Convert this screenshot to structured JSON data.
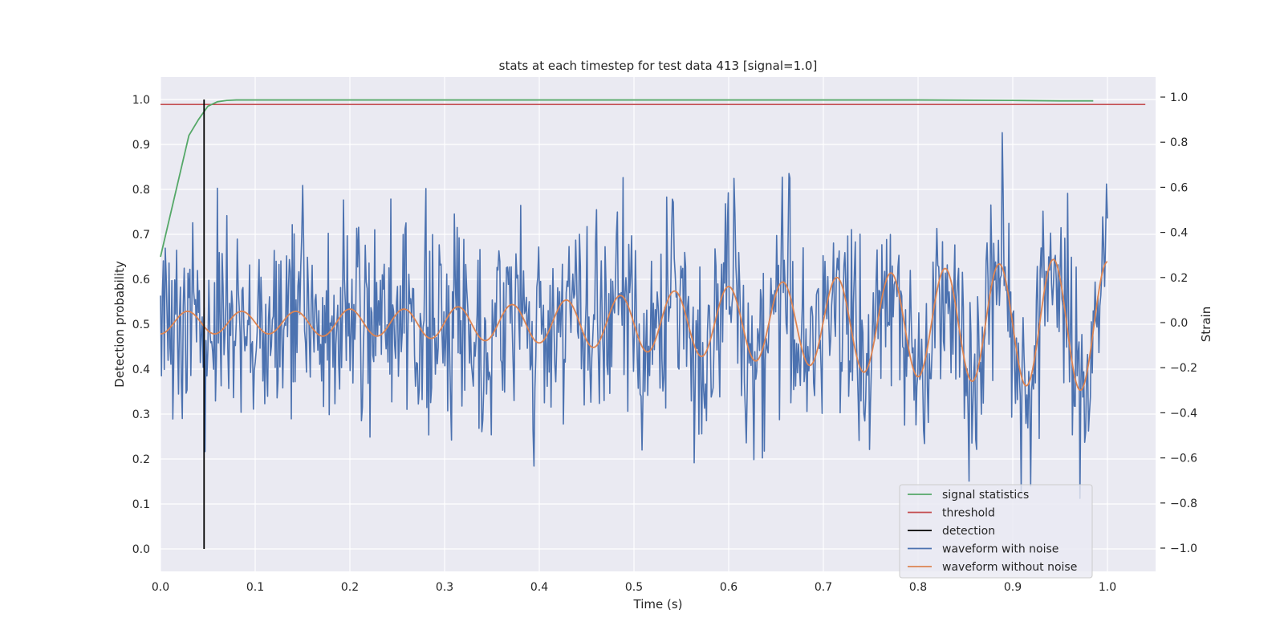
{
  "chart_data": {
    "type": "line",
    "title": "stats at each timestep for test data 413 [signal=1.0]",
    "xlabel": "Time (s)",
    "ylabel_left": "Detection probability",
    "ylabel_right": "Strain",
    "xlim": [
      0.0,
      1.05
    ],
    "ylim_left": [
      -0.05,
      1.05
    ],
    "ylim_right": [
      -1.1,
      1.1
    ],
    "grid": true,
    "x_ticks": [
      0.0,
      0.1,
      0.2,
      0.3,
      0.4,
      0.5,
      0.6,
      0.7,
      0.8,
      0.9,
      1.0
    ],
    "x_tick_labels": [
      "0.0",
      "0.1",
      "0.2",
      "0.3",
      "0.4",
      "0.5",
      "0.6",
      "0.7",
      "0.8",
      "0.9",
      "1.0"
    ],
    "y_left_ticks": [
      0.0,
      0.1,
      0.2,
      0.3,
      0.4,
      0.5,
      0.6,
      0.7,
      0.8,
      0.9,
      1.0
    ],
    "y_left_tick_labels": [
      "0.0",
      "0.1",
      "0.2",
      "0.3",
      "0.4",
      "0.5",
      "0.6",
      "0.7",
      "0.8",
      "0.9",
      "1.0"
    ],
    "y_right_ticks": [
      -1.0,
      -0.8,
      -0.6,
      -0.4,
      -0.2,
      0.0,
      0.2,
      0.4,
      0.6,
      0.8,
      1.0
    ],
    "y_right_tick_labels": [
      "−1.0",
      "−0.8",
      "−0.6",
      "−0.4",
      "−0.2",
      "0.0",
      "0.2",
      "0.4",
      "0.6",
      "0.8",
      "1.0"
    ],
    "legend_position": "bottom-right",
    "series": [
      {
        "name": "signal statistics",
        "axis": "left",
        "color": "#55a868",
        "x": [
          0.0,
          0.01,
          0.02,
          0.03,
          0.04,
          0.05,
          0.06,
          0.07,
          0.08,
          0.1,
          0.2,
          0.4,
          0.6,
          0.8,
          0.9,
          0.95,
          0.985
        ],
        "y": [
          0.65,
          0.74,
          0.83,
          0.92,
          0.955,
          0.985,
          0.995,
          0.998,
          0.999,
          0.999,
          0.999,
          0.999,
          0.999,
          0.999,
          0.998,
          0.997,
          0.997
        ]
      },
      {
        "name": "threshold",
        "axis": "left",
        "color": "#c44e52",
        "x": [
          0.0,
          1.04
        ],
        "y": [
          0.989,
          0.989
        ]
      },
      {
        "name": "detection",
        "axis": "left",
        "color": "#000000",
        "x": [
          0.046,
          0.046
        ],
        "y": [
          0.0,
          1.0
        ]
      },
      {
        "name": "waveform with noise",
        "axis": "right",
        "color": "#4c72b0",
        "x_range": [
          0.0,
          1.0
        ],
        "n_points": 1000,
        "y_approx_std": 0.3
      },
      {
        "name": "waveform without noise",
        "axis": "right",
        "color": "#dd8452",
        "x_range": [
          0.0,
          1.0
        ],
        "y": [
          -0.05,
          0.05,
          -0.05,
          0.05,
          -0.05,
          0.05,
          -0.06,
          0.06,
          -0.06,
          0.06,
          -0.07,
          0.07,
          -0.08,
          0.08,
          -0.09,
          0.1,
          -0.11,
          0.12,
          -0.13,
          0.14,
          -0.15,
          0.16,
          -0.17,
          0.18,
          -0.19,
          0.2,
          -0.22,
          0.22,
          -0.24,
          0.24,
          -0.26,
          0.26,
          -0.28,
          0.28,
          -0.3,
          0.27
        ]
      }
    ]
  }
}
